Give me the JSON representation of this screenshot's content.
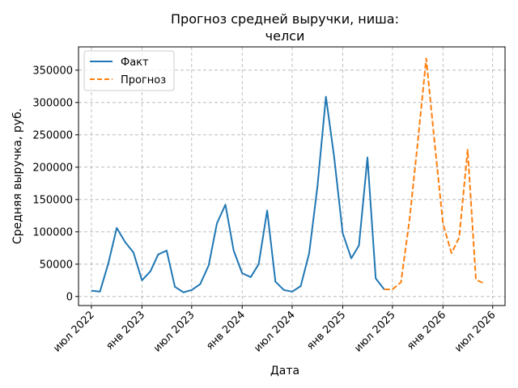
{
  "chart_data": {
    "type": "line",
    "title_line1": "Прогноз средней выручки, ниша:",
    "title_line2": "челси",
    "xlabel": "Дата",
    "ylabel": "Средняя выручка, руб.",
    "grid": true,
    "legend_position": "top-left",
    "xlim": [
      "2022-05-15",
      "2026-08-15"
    ],
    "ylim": [
      -14000,
      386000
    ],
    "x_ticks": [
      {
        "date": "2022-07-01",
        "label": "июл 2022"
      },
      {
        "date": "2023-01-01",
        "label": "янв 2023"
      },
      {
        "date": "2023-07-01",
        "label": "июл 2023"
      },
      {
        "date": "2024-01-01",
        "label": "янв 2024"
      },
      {
        "date": "2024-07-01",
        "label": "июл 2024"
      },
      {
        "date": "2025-01-01",
        "label": "янв 2025"
      },
      {
        "date": "2025-07-01",
        "label": "июл 2025"
      },
      {
        "date": "2026-01-01",
        "label": "янв 2026"
      },
      {
        "date": "2026-07-01",
        "label": "июл 2026"
      }
    ],
    "y_ticks": [
      {
        "value": 0,
        "label": "0"
      },
      {
        "value": 50000,
        "label": "50000"
      },
      {
        "value": 100000,
        "label": "100000"
      },
      {
        "value": 150000,
        "label": "150000"
      },
      {
        "value": 200000,
        "label": "200000"
      },
      {
        "value": 250000,
        "label": "250000"
      },
      {
        "value": 300000,
        "label": "300000"
      },
      {
        "value": 350000,
        "label": "350000"
      }
    ],
    "series": [
      {
        "name": "Факт",
        "color": "#1f77b4",
        "style": "solid",
        "points": [
          {
            "x": "2022-07-01",
            "y": 9000
          },
          {
            "x": "2022-08-01",
            "y": 7500
          },
          {
            "x": "2022-09-01",
            "y": 52000
          },
          {
            "x": "2022-10-01",
            "y": 106000
          },
          {
            "x": "2022-11-01",
            "y": 84000
          },
          {
            "x": "2022-12-01",
            "y": 68000
          },
          {
            "x": "2023-01-01",
            "y": 25000
          },
          {
            "x": "2023-02-01",
            "y": 39000
          },
          {
            "x": "2023-03-01",
            "y": 65000
          },
          {
            "x": "2023-04-01",
            "y": 71000
          },
          {
            "x": "2023-05-01",
            "y": 15000
          },
          {
            "x": "2023-06-01",
            "y": 6500
          },
          {
            "x": "2023-07-01",
            "y": 10000
          },
          {
            "x": "2023-08-01",
            "y": 19000
          },
          {
            "x": "2023-09-01",
            "y": 48000
          },
          {
            "x": "2023-10-01",
            "y": 113000
          },
          {
            "x": "2023-11-01",
            "y": 142000
          },
          {
            "x": "2023-12-01",
            "y": 71000
          },
          {
            "x": "2024-01-01",
            "y": 36000
          },
          {
            "x": "2024-02-01",
            "y": 30000
          },
          {
            "x": "2024-03-01",
            "y": 50000
          },
          {
            "x": "2024-04-01",
            "y": 133000
          },
          {
            "x": "2024-05-01",
            "y": 23000
          },
          {
            "x": "2024-06-01",
            "y": 10000
          },
          {
            "x": "2024-07-01",
            "y": 7500
          },
          {
            "x": "2024-08-01",
            "y": 16000
          },
          {
            "x": "2024-09-01",
            "y": 67000
          },
          {
            "x": "2024-10-01",
            "y": 170000
          },
          {
            "x": "2024-11-01",
            "y": 309000
          },
          {
            "x": "2024-12-01",
            "y": 215000
          },
          {
            "x": "2025-01-01",
            "y": 98000
          },
          {
            "x": "2025-02-01",
            "y": 59000
          },
          {
            "x": "2025-03-01",
            "y": 79000
          },
          {
            "x": "2025-04-01",
            "y": 215000
          },
          {
            "x": "2025-05-01",
            "y": 28000
          },
          {
            "x": "2025-06-01",
            "y": 11000
          }
        ]
      },
      {
        "name": "Прогноз",
        "color": "#ff7f0e",
        "style": "dashed",
        "points": [
          {
            "x": "2025-06-01",
            "y": 11000
          },
          {
            "x": "2025-07-01",
            "y": 11000
          },
          {
            "x": "2025-08-01",
            "y": 22000
          },
          {
            "x": "2025-09-01",
            "y": 118000
          },
          {
            "x": "2025-10-01",
            "y": 238000
          },
          {
            "x": "2025-11-01",
            "y": 368000
          },
          {
            "x": "2025-12-01",
            "y": 240000
          },
          {
            "x": "2026-01-01",
            "y": 113000
          },
          {
            "x": "2026-02-01",
            "y": 67000
          },
          {
            "x": "2026-03-01",
            "y": 91000
          },
          {
            "x": "2026-04-01",
            "y": 227000
          },
          {
            "x": "2026-05-01",
            "y": 26000
          },
          {
            "x": "2026-06-01",
            "y": 20000
          }
        ]
      }
    ]
  }
}
